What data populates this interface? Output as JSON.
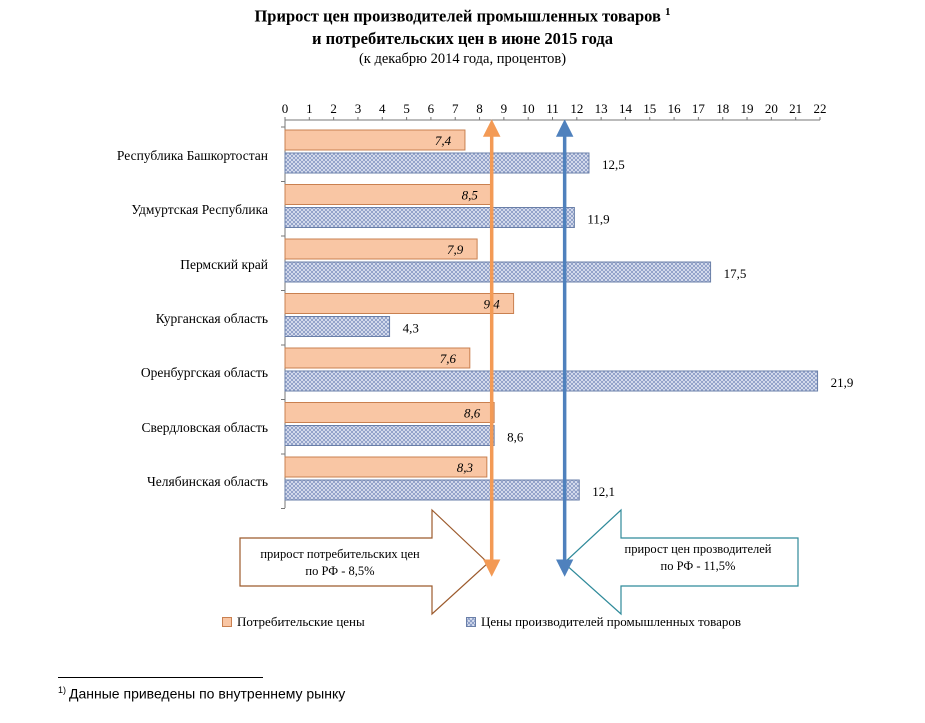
{
  "title_line1": "Прирост цен производителей промышленных товаров",
  "title_footnote_mark": "1",
  "title_line2": "и потребительских цен в июне 2015 года",
  "subtitle": "(к декабрю 2014 года, процентов)",
  "chart_data": {
    "type": "bar",
    "orientation": "horizontal",
    "title": "Прирост цен производителей промышленных товаров и потребительских цен в июне 2015 года",
    "subtitle": "(к декабрю 2014 года, процентов)",
    "categories": [
      "Республика Башкортостан",
      "Удмуртская Республика",
      "Пермский край",
      "Курганская область",
      "Оренбургская область",
      "Свердловская область",
      "Челябинская область"
    ],
    "series": [
      {
        "name": "Потребительские цены",
        "values": [
          7.4,
          8.5,
          7.9,
          9.4,
          7.6,
          8.6,
          8.3
        ],
        "labels": [
          "7,4",
          "8,5",
          "7,9",
          "9,4",
          "7,6",
          "8,6",
          "8,3"
        ],
        "color": "#f9c6a4"
      },
      {
        "name": "Цены производителей промышленных товаров",
        "values": [
          12.5,
          11.9,
          17.5,
          4.3,
          21.9,
          8.6,
          12.1
        ],
        "labels": [
          "12,5",
          "11,9",
          "17,5",
          "4,3",
          "21,9",
          "8,6",
          "12,1"
        ],
        "color": "#dde3f1"
      }
    ],
    "xlim": [
      0,
      22
    ],
    "ticks": [
      "0",
      "1",
      "2",
      "3",
      "4",
      "5",
      "6",
      "7",
      "8",
      "9",
      "10",
      "11",
      "12",
      "13",
      "14",
      "15",
      "16",
      "17",
      "18",
      "19",
      "20",
      "21",
      "22"
    ],
    "legend_position": "bottom",
    "reference_lines": [
      {
        "name": "consumer-rf",
        "value": 8.5,
        "color": "#f39a55",
        "label": "прирост потребительских цен по РФ - 8,5%"
      },
      {
        "name": "producer-rf",
        "value": 11.5,
        "color": "#4f81bd",
        "label": "прирост цен прозводителей по РФ - 11,5%"
      }
    ]
  },
  "callouts": {
    "consumer_line1": "прирост потребительских цен",
    "consumer_line2": "по РФ - 8,5%",
    "producer_line1": "прирост цен прозводителей",
    "producer_line2": "по РФ - 11,5%"
  },
  "legend": {
    "consumer": "Потребительские цены",
    "producer": "Цены производителей промышленных товаров"
  },
  "footnote": {
    "mark": "1)",
    "text": "Данные приведены по внутреннему рынку"
  }
}
